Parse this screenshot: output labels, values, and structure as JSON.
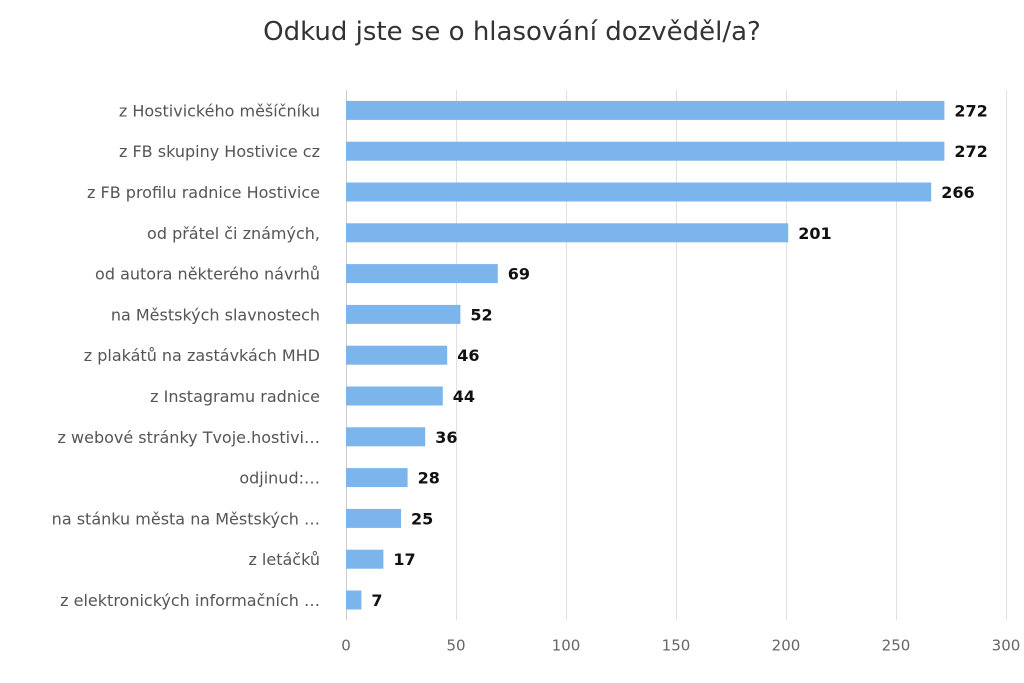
{
  "chart_data": {
    "type": "bar",
    "orientation": "horizontal",
    "title": "Odkud jste se o hlasování dozvěděl/a?",
    "xlabel": "",
    "ylabel": "",
    "categories": [
      "z Hostivického měšíčníku",
      "z FB skupiny Hostivice cz",
      "z FB profilu radnice Hostivice",
      "od přátel či známých,",
      "od autora některého návrhů",
      "na Městských slavnostech",
      "z plakátů na zastávkách MHD",
      "z Instagramu radnice",
      "z webové stránky Tvoje.hostivi…",
      "odjinud:…",
      "na stánku města na Městských …",
      "z letáčků",
      "z elektronických informačních …"
    ],
    "values": [
      272,
      272,
      266,
      201,
      69,
      52,
      46,
      44,
      36,
      28,
      25,
      17,
      7
    ],
    "xlim": [
      0,
      300
    ],
    "ticks": [
      0,
      50,
      100,
      150,
      200,
      250,
      300
    ],
    "grid": true,
    "data_labels": true,
    "bar_color": "#7cb5ec"
  }
}
